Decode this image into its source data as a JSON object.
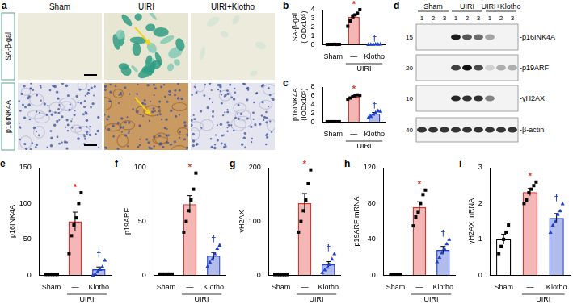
{
  "panel_a": {
    "label": "a",
    "columns": [
      "Sham",
      "UIRI",
      "UIRI+Klotho"
    ],
    "rows": [
      "SA-β-gal",
      "p16INK4A"
    ]
  },
  "panel_d": {
    "label": "d",
    "groups": [
      "Sham",
      "UIRI",
      "UIRI+Klotho"
    ],
    "lanes": [
      1,
      2,
      3
    ],
    "bands": [
      {
        "name": "-p16INK4A",
        "marker": 15,
        "intensity": [
          0,
          0,
          0,
          0.95,
          0.7,
          0.6,
          0.35,
          0,
          0
        ]
      },
      {
        "name": "-p19ARF",
        "marker": 20,
        "intensity": [
          0,
          0,
          0,
          0.8,
          1,
          0.75,
          0.15,
          0.3,
          0.3
        ]
      },
      {
        "name": "-γH2AX",
        "marker": 10,
        "intensity": [
          0,
          0,
          0,
          0.9,
          0.85,
          0.85,
          0.5,
          0,
          0
        ]
      },
      {
        "name": "-β-actin",
        "marker": 40,
        "intensity": [
          0.85,
          0.85,
          0.85,
          0.85,
          0.85,
          0.85,
          0.85,
          0.85,
          0.85
        ]
      }
    ]
  },
  "chart_data": [
    {
      "label": "b",
      "type": "bar",
      "y_label": [
        "SA-β-gal",
        "(IODx10⁵)"
      ],
      "categories": [
        "Sham",
        "—",
        "Klotho"
      ],
      "group_label": "UIRI",
      "values": [
        0.02,
        3.17,
        0.05
      ],
      "errors": [
        0.01,
        0.28,
        0.01
      ],
      "points": [
        [
          0.01,
          0.02,
          0.02,
          0.03,
          0.01,
          0.02
        ],
        [
          2.1,
          2.7,
          3.2,
          3.4,
          3.6,
          4.0
        ],
        [
          0.03,
          0.04,
          0.05,
          0.06,
          0.05,
          0.07
        ]
      ],
      "annotations": [
        null,
        "*",
        "†"
      ],
      "colors": [
        "#000000",
        "#e0312b",
        "#1f3fc8"
      ],
      "ylim": [
        0,
        4
      ],
      "yticks": [
        0,
        1,
        2,
        3,
        4
      ]
    },
    {
      "label": "c",
      "type": "bar",
      "y_label": [
        "p16INK4A",
        "(IODx10⁵)"
      ],
      "categories": [
        "Sham",
        "—",
        "Klotho"
      ],
      "group_label": "UIRI",
      "values": [
        0.05,
        5.8,
        1.9
      ],
      "errors": [
        0.01,
        0.16,
        0.27
      ],
      "points": [
        [
          0.05,
          0.05,
          0.05,
          0.05,
          0.05,
          0.05
        ],
        [
          5.2,
          5.5,
          5.8,
          6.0,
          6.2,
          6.1
        ],
        [
          1.0,
          1.3,
          1.8,
          2.2,
          2.6,
          2.5
        ]
      ],
      "annotations": [
        null,
        "*",
        "†"
      ],
      "colors": [
        "#000000",
        "#e0312b",
        "#1f3fc8"
      ],
      "ylim": [
        0,
        8
      ],
      "yticks": [
        0,
        2,
        4,
        6,
        8
      ]
    },
    {
      "label": "e",
      "type": "bar",
      "y_label": [
        "p16INK4A"
      ],
      "categories": [
        "Sham",
        "—",
        "Klotho"
      ],
      "group_label": "UIRI",
      "values": [
        1,
        75,
        8
      ],
      "errors": [
        0.2,
        13,
        3.2
      ],
      "points": [
        [
          1,
          1,
          1,
          1,
          1,
          1
        ],
        [
          30,
          55,
          70,
          80,
          100,
          115
        ],
        [
          0,
          2,
          5,
          8,
          12,
          21
        ]
      ],
      "annotations": [
        null,
        "*",
        "†"
      ],
      "colors": [
        "#000000",
        "#e0312b",
        "#1f3fc8"
      ],
      "ylim": [
        0,
        150
      ],
      "yticks": [
        0,
        50,
        100,
        150
      ]
    },
    {
      "label": "f",
      "type": "bar",
      "y_label": [
        "p19ARF"
      ],
      "categories": [
        "Sham",
        "—",
        "Klotho"
      ],
      "group_label": "UIRI",
      "values": [
        1,
        66,
        18
      ],
      "errors": [
        0.2,
        8,
        3
      ],
      "points": [
        [
          1,
          1,
          1,
          1,
          1,
          1
        ],
        [
          40,
          50,
          60,
          70,
          80,
          95
        ],
        [
          8,
          12,
          15,
          20,
          25,
          28
        ]
      ],
      "annotations": [
        null,
        "*",
        "†"
      ],
      "colors": [
        "#000000",
        "#e0312b",
        "#1f3fc8"
      ],
      "ylim": [
        0,
        100
      ],
      "yticks": [
        0,
        50,
        100
      ]
    },
    {
      "label": "g",
      "type": "bar",
      "y_label": [
        "γH2AX"
      ],
      "categories": [
        "Sham",
        "—",
        "Klotho"
      ],
      "group_label": "UIRI",
      "values": [
        1,
        134,
        20
      ],
      "errors": [
        0.2,
        18,
        5
      ],
      "points": [
        [
          1,
          1,
          1,
          1,
          1,
          1
        ],
        [
          80,
          100,
          120,
          140,
          170,
          196
        ],
        [
          5,
          10,
          15,
          20,
          30,
          40
        ]
      ],
      "annotations": [
        null,
        "*",
        "†"
      ],
      "colors": [
        "#000000",
        "#e0312b",
        "#1f3fc8"
      ],
      "ylim": [
        0,
        200
      ],
      "yticks": [
        0,
        100,
        200
      ]
    },
    {
      "label": "h",
      "type": "bar",
      "y_label": [
        "p19ARF mRNA"
      ],
      "categories": [
        "Sham",
        "—",
        "Klotho"
      ],
      "group_label": "UIRI",
      "values": [
        1,
        76,
        28
      ],
      "errors": [
        0.2,
        6,
        4
      ],
      "points": [
        [
          1,
          1,
          1,
          1,
          1
        ],
        [
          55,
          65,
          70,
          80,
          90,
          95
        ],
        [
          15,
          20,
          25,
          30,
          35,
          40
        ]
      ],
      "annotations": [
        null,
        "*",
        "†"
      ],
      "colors": [
        "#000000",
        "#e0312b",
        "#1f3fc8"
      ],
      "ylim": [
        0,
        120
      ],
      "yticks": [
        0,
        40,
        80,
        120
      ]
    },
    {
      "label": "i",
      "type": "bar",
      "y_label": [
        "γH2AX mRNA"
      ],
      "categories": [
        "Sham",
        "—",
        "Klotho"
      ],
      "group_label": "UIRI",
      "values": [
        1.0,
        2.32,
        1.6
      ],
      "errors": [
        0.14,
        0.1,
        0.12
      ],
      "points": [
        [
          0.6,
          0.8,
          1.0,
          1.2,
          1.4
        ],
        [
          2.0,
          2.1,
          2.3,
          2.4,
          2.5,
          2.6
        ],
        [
          1.2,
          1.4,
          1.5,
          1.7,
          1.8,
          2.0
        ]
      ],
      "annotations": [
        null,
        "*",
        "†"
      ],
      "colors": [
        "#000000",
        "#e0312b",
        "#1f3fc8"
      ],
      "ylim": [
        0,
        3
      ],
      "yticks": [
        0,
        1,
        2,
        3
      ]
    }
  ]
}
